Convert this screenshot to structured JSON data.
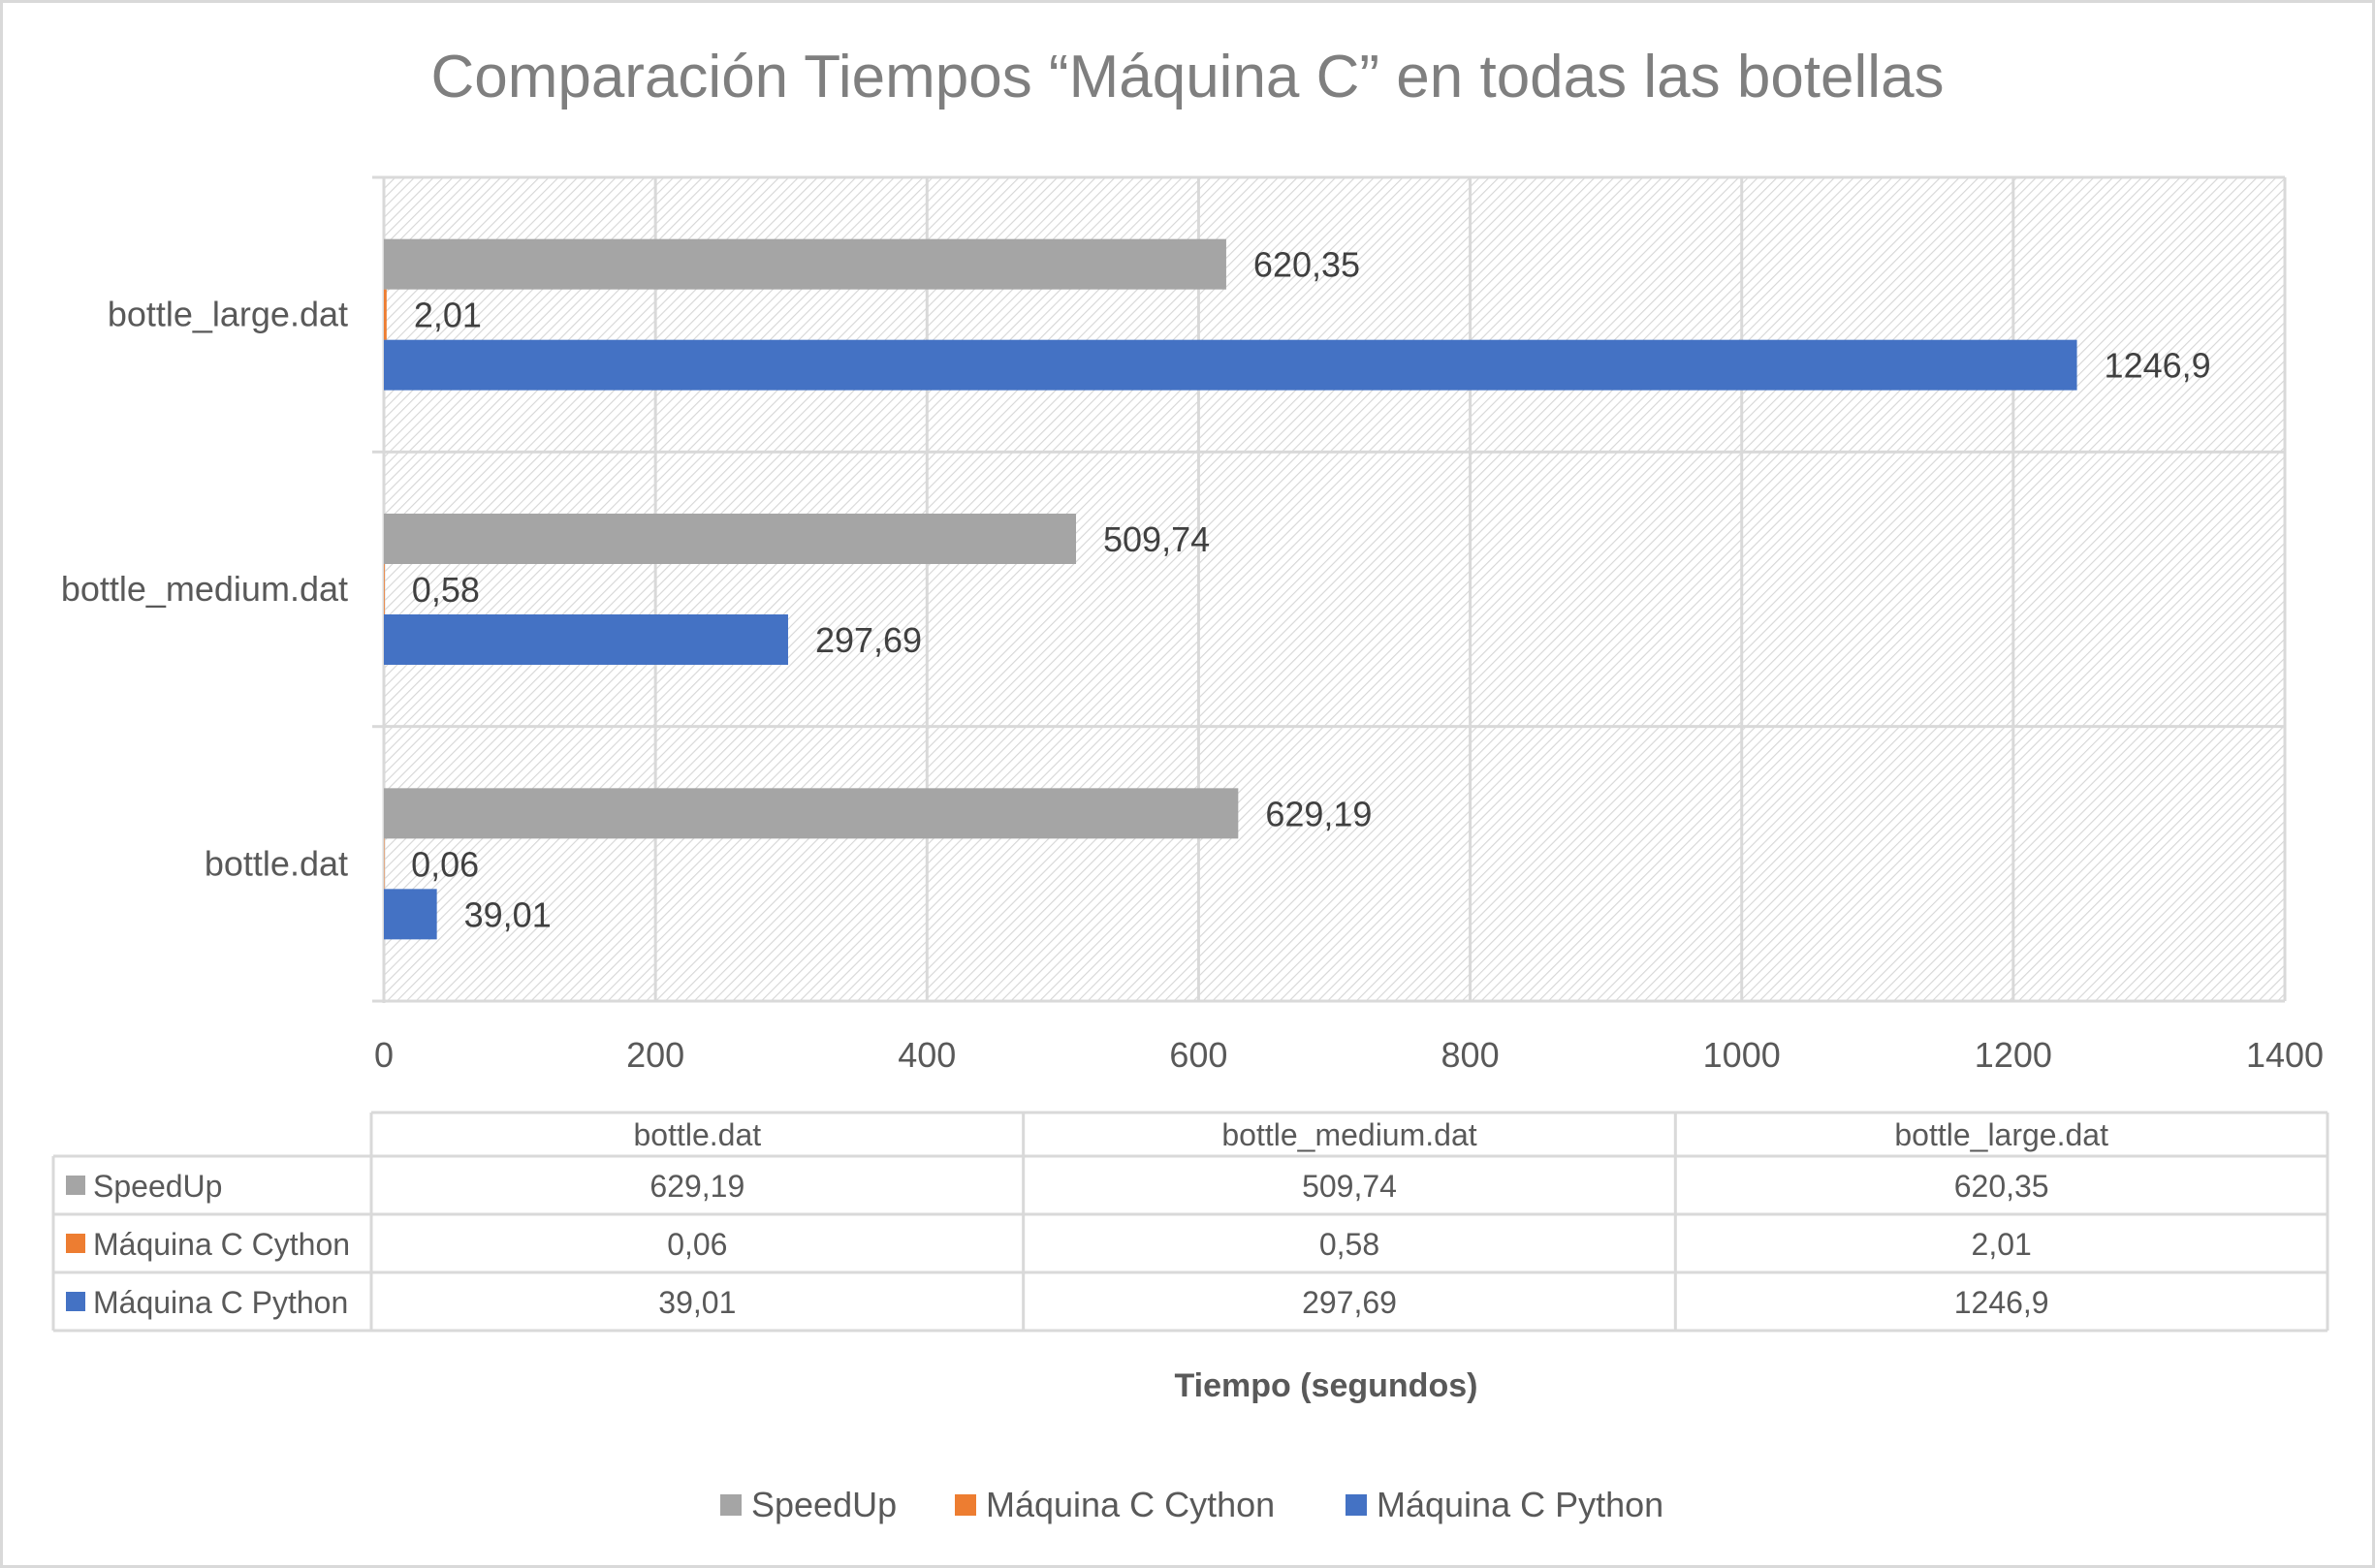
{
  "chart_data": {
    "type": "bar",
    "orientation": "horizontal",
    "title": "Comparación Tiempos “Máquina C” en todas las botellas",
    "xlabel": "Tiempo (segundos)",
    "ylabel": "",
    "categories": [
      "bottle.dat",
      "bottle_medium.dat",
      "bottle_large.dat"
    ],
    "series": [
      {
        "name": "SpeedUp",
        "color": "#a5a5a5",
        "values": [
          629.19,
          509.74,
          620.35
        ],
        "labels": [
          "629,19",
          "509,74",
          "620,35"
        ]
      },
      {
        "name": "Máquina C Cython",
        "color": "#ed7d31",
        "values": [
          0.06,
          0.58,
          2.01
        ],
        "labels": [
          "0,06",
          "0,58",
          "2,01"
        ]
      },
      {
        "name": "Máquina C Python",
        "color": "#4472c4",
        "values": [
          39.01,
          297.69,
          1246.9
        ],
        "labels": [
          "39,01",
          "297,69",
          "1246,9"
        ]
      }
    ],
    "xlim": [
      0,
      1400
    ],
    "xticks": [
      "0",
      "200",
      "400",
      "600",
      "800",
      "1000",
      "1200",
      "1400"
    ],
    "grid": true,
    "data_table": true,
    "legend_position": "bottom"
  }
}
